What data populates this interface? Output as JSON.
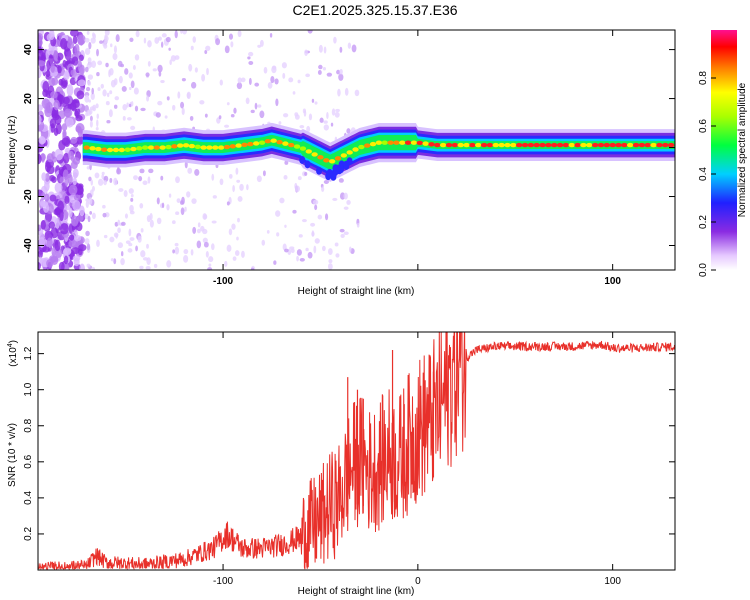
{
  "title": "C2E1.2025.325.15.37.E36",
  "chart_data": [
    {
      "type": "heatmap",
      "xlabel": "Height of straight line (km)",
      "ylabel": "Frequency (Hz)",
      "xlim": [
        -195,
        132
      ],
      "ylim": [
        -50,
        48
      ],
      "xticks": [
        -100,
        0,
        100
      ],
      "xtick_labels": [
        "-100",
        "",
        "100"
      ],
      "yticks": [
        -40,
        -20,
        0,
        20,
        40
      ],
      "ytick_labels": [
        "-40",
        "-20",
        "0",
        "20",
        "40"
      ],
      "ridge_frequency_track": {
        "x": [
          -170,
          -160,
          -150,
          -140,
          -130,
          -120,
          -110,
          -100,
          -90,
          -80,
          -75,
          -70,
          -60,
          -50,
          -45,
          -40,
          -35,
          -30,
          -25,
          -20,
          -15,
          -10,
          0,
          10,
          20,
          30,
          50,
          70,
          90,
          110,
          132
        ],
        "y": [
          0,
          -1,
          -1,
          0,
          0,
          1,
          0,
          0,
          1,
          2,
          3,
          2,
          0,
          -4,
          -6,
          -4,
          -2,
          0,
          1,
          2,
          2,
          2,
          2,
          1,
          1,
          1,
          1,
          1,
          1,
          1,
          1
        ]
      },
      "noise_band_x": [
        -195,
        -172
      ],
      "colorbar": {
        "label": "Normalized spectral amplitude",
        "range": [
          0,
          1
        ],
        "ticks": [
          0.0,
          0.2,
          0.4,
          0.6,
          0.8
        ],
        "tick_labels": [
          "0.0",
          "0.2",
          "0.4",
          "0.6",
          "0.8"
        ]
      }
    },
    {
      "type": "line",
      "xlabel": "Height of straight line (km)",
      "ylabel": "SNR (10 * v/v)",
      "multiplier_label": "(x10",
      "multiplier_exponent": "4",
      "multiplier_close": ")",
      "xlim": [
        -195,
        132
      ],
      "ylim": [
        0,
        1.32
      ],
      "xticks": [
        -100,
        0,
        100
      ],
      "xtick_labels": [
        "-100",
        "0",
        "100"
      ],
      "yticks": [
        0.2,
        0.4,
        0.6,
        0.8,
        1.0,
        1.2
      ],
      "ytick_labels": [
        "0.2",
        "0.4",
        "0.6",
        "0.8",
        "1.0",
        "1.2"
      ],
      "color": "#e8302a",
      "series_envelope": {
        "x": [
          -195,
          -170,
          -165,
          -160,
          -140,
          -120,
          -105,
          -98,
          -90,
          -80,
          -70,
          -60,
          -50,
          -45,
          -40,
          -35,
          -30,
          -25,
          -20,
          -15,
          -10,
          -5,
          0,
          5,
          10,
          15,
          20,
          25,
          30,
          40,
          60,
          80,
          95,
          100,
          110,
          132
        ],
        "y": [
          0.01,
          0.02,
          0.08,
          0.04,
          0.03,
          0.06,
          0.12,
          0.2,
          0.12,
          0.12,
          0.14,
          0.18,
          0.28,
          0.35,
          0.4,
          0.55,
          0.62,
          0.55,
          0.58,
          0.65,
          0.6,
          0.7,
          0.78,
          0.82,
          0.88,
          1.0,
          1.12,
          1.18,
          1.22,
          1.24,
          1.24,
          1.24,
          1.25,
          1.23,
          1.23,
          1.24
        ]
      },
      "spikes": [
        {
          "x": -36,
          "y": 1.07
        },
        {
          "x": -31,
          "y": 1.0
        },
        {
          "x": -28,
          "y": 0.95
        },
        {
          "x": -13,
          "y": 1.22
        },
        {
          "x": -7,
          "y": 0.92
        },
        {
          "x": 8,
          "y": 1.1
        }
      ]
    }
  ]
}
